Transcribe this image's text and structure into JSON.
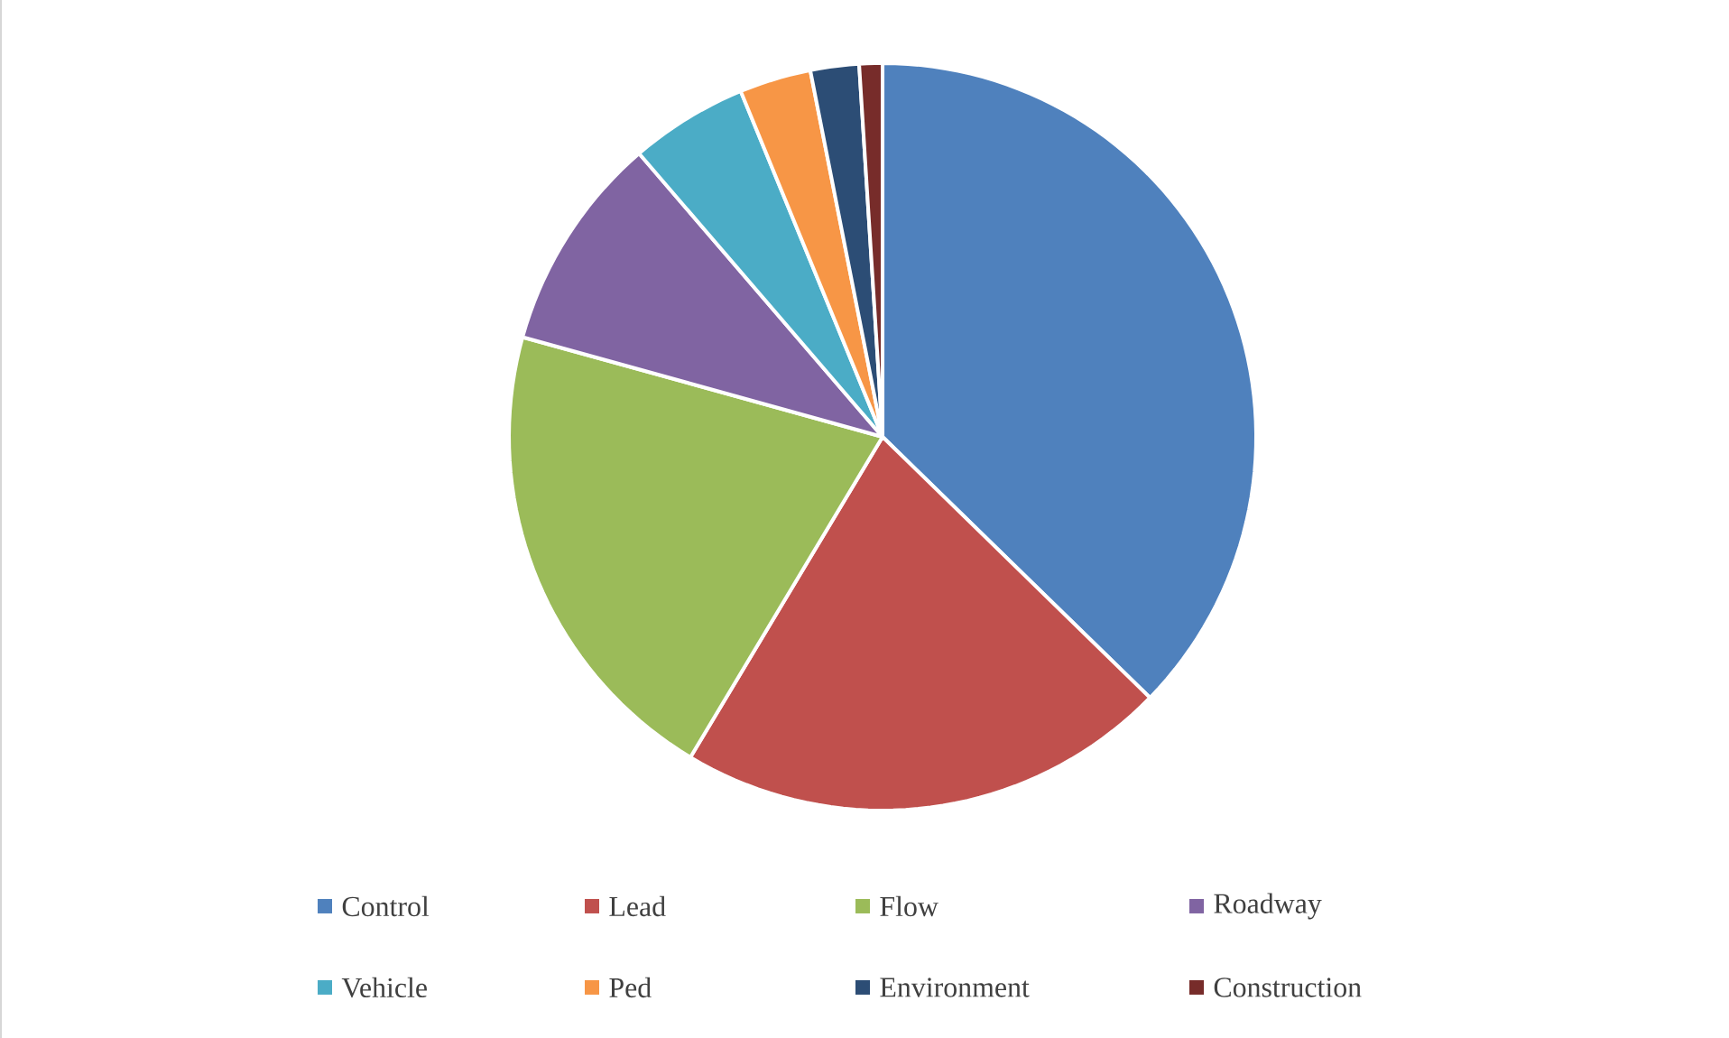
{
  "chart_data": {
    "type": "pie",
    "categories": [
      "Control",
      "Lead",
      "Flow",
      "Roadway",
      "Vehicle",
      "Ped",
      "Environment",
      "Construction"
    ],
    "values": [
      37.3,
      21.3,
      20.7,
      9.4,
      5.1,
      3.1,
      2.1,
      1.0
    ],
    "colors": [
      "#4f81bd",
      "#c0504d",
      "#9bbb59",
      "#8064a2",
      "#4bacc6",
      "#f79646",
      "#2c4d75",
      "#772c2a"
    ],
    "legend": "bottom"
  }
}
